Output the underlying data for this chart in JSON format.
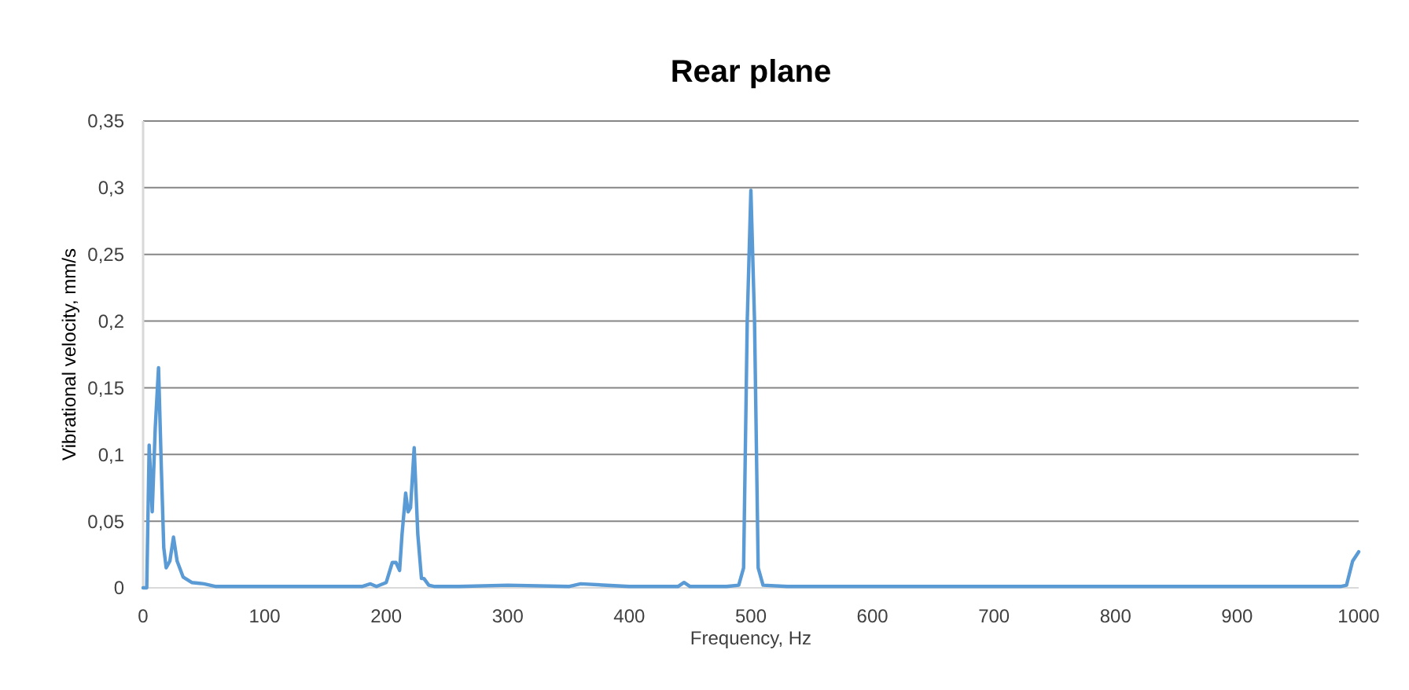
{
  "chart_data": {
    "type": "line",
    "title": "Rear plane",
    "xlabel": "Frequency, Hz",
    "ylabel": "Vibrational velocity, mm/s",
    "xlim": [
      0,
      1000
    ],
    "xticks": [
      0,
      100,
      200,
      300,
      400,
      500,
      600,
      700,
      800,
      900,
      1000
    ],
    "ylim": [
      0,
      0.35
    ],
    "yticks": [
      {
        "value": 0,
        "label": "0"
      },
      {
        "value": 0.05,
        "label": "0,05"
      },
      {
        "value": 0.1,
        "label": "0,1"
      },
      {
        "value": 0.15,
        "label": "0,15"
      },
      {
        "value": 0.2,
        "label": "0,2"
      },
      {
        "value": 0.25,
        "label": "0,25"
      },
      {
        "value": 0.3,
        "label": "0,3"
      },
      {
        "value": 0.35,
        "label": "0,35"
      }
    ],
    "grid": "y",
    "marker": "none",
    "line_style": "solid",
    "series": [
      {
        "color": "#5b9bd5",
        "x": [
          0,
          3,
          5,
          7.5,
          10,
          12.7,
          15,
          17,
          19,
          22,
          25,
          28,
          33,
          40,
          50,
          60,
          80,
          120,
          160,
          180,
          187,
          192,
          200,
          205,
          208,
          211,
          213,
          216,
          218,
          220,
          223,
          226,
          229,
          231,
          235,
          240,
          260,
          300,
          350,
          360,
          400,
          440,
          445,
          450,
          480,
          490,
          494,
          497,
          500,
          503,
          506,
          510,
          530,
          600,
          700,
          800,
          900,
          985,
          990,
          995,
          1000
        ],
        "values": [
          0,
          0,
          0.107,
          0.057,
          0.12,
          0.165,
          0.09,
          0.03,
          0.015,
          0.02,
          0.038,
          0.02,
          0.008,
          0.004,
          0.003,
          0.001,
          0.001,
          0.001,
          0.001,
          0.001,
          0.003,
          0.001,
          0.004,
          0.019,
          0.019,
          0.013,
          0.04,
          0.071,
          0.057,
          0.06,
          0.105,
          0.04,
          0.007,
          0.007,
          0.002,
          0.001,
          0.001,
          0.002,
          0.001,
          0.003,
          0.001,
          0.001,
          0.004,
          0.001,
          0.001,
          0.002,
          0.015,
          0.2,
          0.298,
          0.2,
          0.015,
          0.002,
          0.001,
          0.001,
          0.001,
          0.001,
          0.001,
          0.001,
          0.002,
          0.02,
          0.027
        ]
      }
    ]
  }
}
